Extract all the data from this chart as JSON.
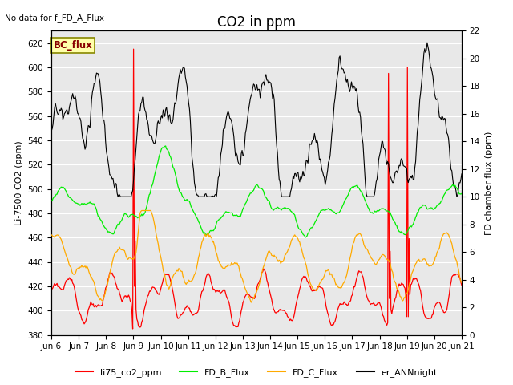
{
  "title": "CO2 in ppm",
  "no_data_text": "No data for f_FD_A_Flux",
  "bc_flux_label": "BC_flux",
  "ylabel_left": "Li-7500 CO2 (ppm)",
  "ylabel_right": "FD chamber flux (ppm)",
  "ylim_left": [
    380,
    630
  ],
  "ylim_right": [
    0,
    22
  ],
  "yticks_left": [
    380,
    400,
    420,
    440,
    460,
    480,
    500,
    520,
    540,
    560,
    580,
    600,
    620
  ],
  "yticks_right": [
    0,
    2,
    4,
    6,
    8,
    10,
    12,
    14,
    16,
    18,
    20,
    22
  ],
  "legend_entries": [
    "li75_co2_ppm",
    "FD_B_Flux",
    "FD_C_Flux",
    "er_ANNnight"
  ],
  "legend_colors": [
    "#ff0000",
    "#00ee00",
    "#ffaa00",
    "#000000"
  ],
  "line_colors": {
    "li75": "#ff0000",
    "FD_B": "#00ee00",
    "FD_C": "#ffaa00",
    "er_ANN": "#000000"
  },
  "background_color": "#e8e8e8",
  "title_fontsize": 12,
  "label_fontsize": 8,
  "tick_fontsize": 7.5,
  "xtick_labels": [
    "Jun 6",
    "Jun 7",
    "Jun 8",
    "Jun 9",
    "Jun 10",
    "Jun 11",
    "Jun 12",
    "Jun 13",
    "Jun 14",
    "Jun 15",
    "Jun 16",
    "Jun 17",
    "Jun 18",
    "Jun 19",
    "Jun 20",
    "Jun 21"
  ]
}
